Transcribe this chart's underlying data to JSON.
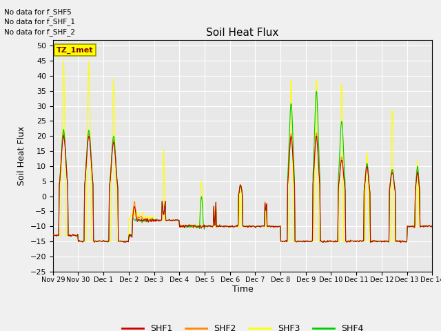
{
  "title": "Soil Heat Flux",
  "ylabel": "Soil Heat Flux",
  "xlabel": "Time",
  "ylim": [
    -25,
    52
  ],
  "yticks": [
    -25,
    -20,
    -15,
    -10,
    -5,
    0,
    5,
    10,
    15,
    20,
    25,
    30,
    35,
    40,
    45,
    50
  ],
  "colors": {
    "SHF1": "#cc0000",
    "SHF2": "#ff8800",
    "SHF3": "#ffff00",
    "SHF4": "#00cc00"
  },
  "legend_labels": [
    "SHF1",
    "SHF2",
    "SHF3",
    "SHF4"
  ],
  "annotations": [
    "No data for f_SHF5",
    "No data for f_SHF_1",
    "No data for f_SHF_2"
  ],
  "inset_label": "TZ_1met",
  "background_color": "#e8e8e8",
  "grid_color": "#ffffff",
  "x_start": 0,
  "x_end": 15,
  "xtick_positions": [
    0,
    1,
    2,
    3,
    4,
    5,
    6,
    7,
    8,
    9,
    10,
    11,
    12,
    13,
    14,
    15
  ],
  "xtick_labels": [
    "Nov 29",
    "Nov 30",
    "Dec 1",
    "Dec 2",
    "Dec 3",
    "Dec 4",
    "Dec 5",
    "Dec 6",
    "Dec 7",
    "Dec 8",
    "Dec 9",
    "Dec 10",
    "Dec 11",
    "Dec 12",
    "Dec 13",
    "Dec 14"
  ]
}
